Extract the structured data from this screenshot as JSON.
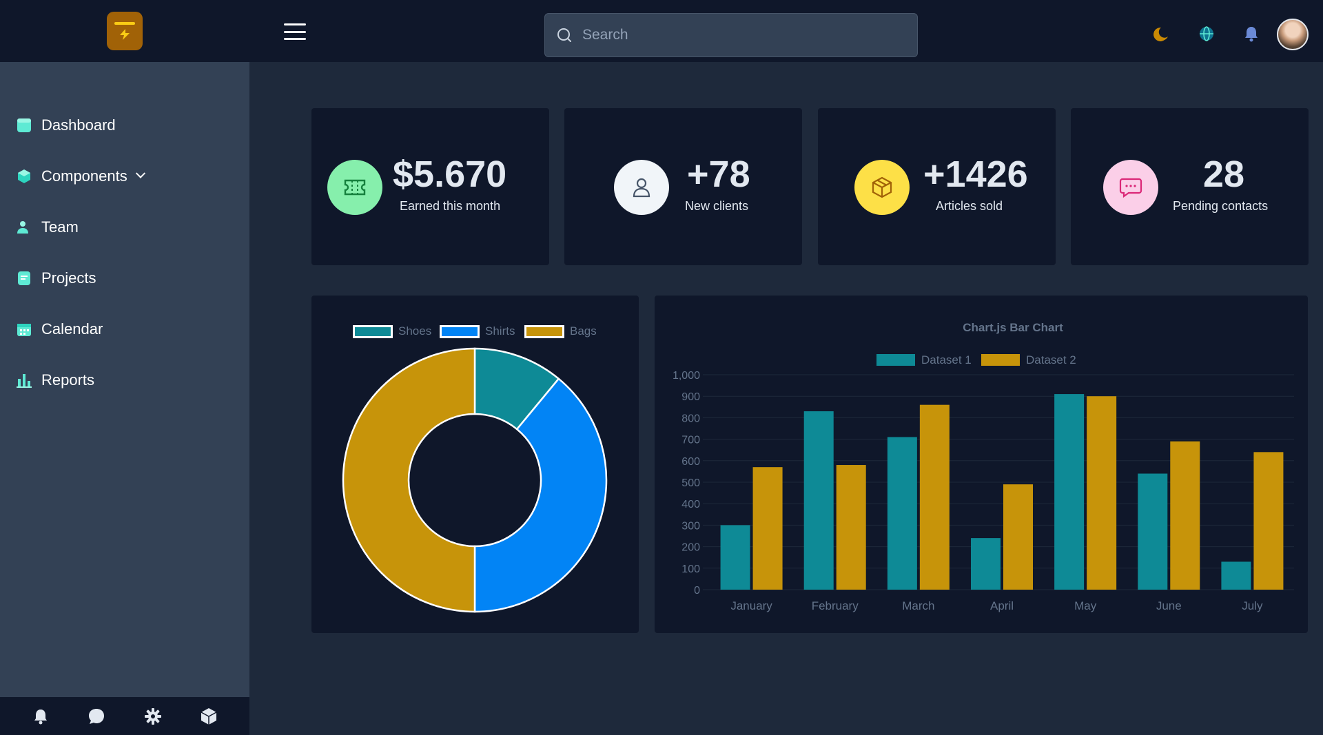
{
  "header": {
    "search_placeholder": "Search",
    "icons": [
      "moon-icon",
      "globe-icon",
      "bell-icon"
    ]
  },
  "sidebar": {
    "items": [
      {
        "label": "Dashboard",
        "icon": "dashboard-icon"
      },
      {
        "label": "Components",
        "icon": "cube-icon"
      },
      {
        "label": "Team",
        "icon": "users-icon"
      },
      {
        "label": "Projects",
        "icon": "document-icon"
      },
      {
        "label": "Calendar",
        "icon": "calendar-icon"
      },
      {
        "label": "Reports",
        "icon": "chart-bar-icon"
      }
    ],
    "footer_icons": [
      "bell-icon",
      "chat-icon",
      "gear-icon",
      "cube-icon"
    ]
  },
  "stats": [
    {
      "value": "$5.670",
      "label": "Earned this month",
      "icon": "ticket-icon",
      "color": "#86efac"
    },
    {
      "value": "+78",
      "label": "New clients",
      "icon": "user-icon",
      "color": "#f1f5f9"
    },
    {
      "value": "+1426",
      "label": "Articles sold",
      "icon": "box-icon",
      "color": "#fde047"
    },
    {
      "value": "28",
      "label": "Pending contacts",
      "icon": "chat-icon",
      "color": "#fbcfe8"
    }
  ],
  "chart_data": [
    {
      "type": "pie",
      "title": "",
      "labels": [
        "Shoes",
        "Shirts",
        "Bags"
      ],
      "values": [
        11,
        39,
        50
      ],
      "colors": [
        "#0e8a96",
        "#0284f5",
        "#c7940a"
      ]
    },
    {
      "type": "bar",
      "title": "Chart.js Bar Chart",
      "categories": [
        "January",
        "February",
        "March",
        "April",
        "May",
        "June",
        "July"
      ],
      "series": [
        {
          "name": "Dataset 1",
          "values": [
            300,
            830,
            710,
            240,
            910,
            540,
            130
          ],
          "color": "#0e8a96"
        },
        {
          "name": "Dataset 2",
          "values": [
            570,
            580,
            860,
            490,
            900,
            690,
            640
          ],
          "color": "#c7940a"
        }
      ],
      "ylim": [
        0,
        1000
      ],
      "yticks": [
        "1,000",
        "900",
        "800",
        "700",
        "600",
        "500",
        "400",
        "300",
        "200",
        "100",
        "0"
      ],
      "xlabel": "",
      "ylabel": ""
    }
  ]
}
